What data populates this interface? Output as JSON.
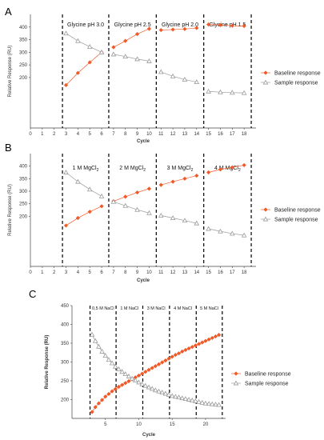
{
  "colors": {
    "baseline": "#f05a28",
    "sample": "#9a9a9a",
    "axis": "#444444",
    "divider": "#000000"
  },
  "chart_data": [
    {
      "panel": "A",
      "type": "line",
      "xlabel": "Cycle",
      "ylabel": "Relative Response (RU)",
      "xlim": [
        0,
        19
      ],
      "ylim": [
        0,
        450
      ],
      "xticks": [
        0,
        1,
        2,
        3,
        4,
        5,
        6,
        7,
        8,
        9,
        10,
        11,
        12,
        13,
        14,
        15,
        16,
        17,
        18
      ],
      "yticks": [
        200,
        250,
        300,
        350,
        400
      ],
      "dividers": [
        2.7,
        6.6,
        10.6,
        14.6,
        18.6
      ],
      "segments": [
        {
          "label": "Glycine pH 3.0",
          "sub": ""
        },
        {
          "label": "Glycine pH 2.5",
          "sub": ""
        },
        {
          "label": "Glycine pH 2.0",
          "sub": ""
        },
        {
          "label": "Glycine pH 1.5",
          "sub": ""
        }
      ],
      "series": [
        {
          "name": "Baseline response",
          "marker": "diamond",
          "groups": [
            {
              "x": [
                3,
                4,
                5,
                6
              ],
              "y": [
                170,
                218,
                260,
                300
              ]
            },
            {
              "x": [
                7,
                8,
                9,
                10
              ],
              "y": [
                320,
                345,
                372,
                393
              ]
            },
            {
              "x": [
                11,
                12,
                13,
                14
              ],
              "y": [
                388,
                390,
                392,
                396
              ]
            },
            {
              "x": [
                15,
                16,
                17,
                18
              ],
              "y": [
                410,
                408,
                405,
                404
              ]
            }
          ]
        },
        {
          "name": "Sample response",
          "marker": "triangle",
          "groups": [
            {
              "x": [
                3,
                4,
                5,
                6
              ],
              "y": [
                375,
                345,
                322,
                300
              ]
            },
            {
              "x": [
                7,
                8,
                9,
                10
              ],
              "y": [
                292,
                283,
                273,
                265
              ]
            },
            {
              "x": [
                11,
                12,
                13,
                14
              ],
              "y": [
                222,
                205,
                192,
                182
              ]
            },
            {
              "x": [
                15,
                16,
                17,
                18
              ],
              "y": [
                145,
                142,
                140,
                139
              ]
            }
          ]
        }
      ]
    },
    {
      "panel": "B",
      "type": "line",
      "xlabel": "Cycle",
      "ylabel": "Relative Response (RU)",
      "xlim": [
        0,
        19
      ],
      "ylim": [
        0,
        450
      ],
      "xticks": [
        0,
        1,
        2,
        3,
        4,
        5,
        6,
        7,
        8,
        9,
        10,
        11,
        12,
        13,
        14,
        15,
        16,
        17,
        18
      ],
      "yticks": [
        200,
        250,
        300,
        350,
        400
      ],
      "dividers": [
        2.7,
        6.6,
        10.6,
        14.6,
        18.6
      ],
      "segments": [
        {
          "label": "1 M MgCl",
          "sub": "2"
        },
        {
          "label": "2 M MgCl",
          "sub": "2"
        },
        {
          "label": "3 M MgCl",
          "sub": "2"
        },
        {
          "label": "4 M MgCl",
          "sub": "2"
        }
      ],
      "series": [
        {
          "name": "Baseline response",
          "marker": "diamond",
          "groups": [
            {
              "x": [
                3,
                4,
                5,
                6
              ],
              "y": [
                163,
                193,
                218,
                240
              ]
            },
            {
              "x": [
                7,
                8,
                9,
                10
              ],
              "y": [
                260,
                278,
                295,
                310
              ]
            },
            {
              "x": [
                11,
                12,
                13,
                14
              ],
              "y": [
                325,
                338,
                350,
                362
              ]
            },
            {
              "x": [
                15,
                16,
                17,
                18
              ],
              "y": [
                375,
                387,
                395,
                404
              ]
            }
          ]
        },
        {
          "name": "Sample response",
          "marker": "triangle",
          "groups": [
            {
              "x": [
                3,
                4,
                5,
                6
              ],
              "y": [
                375,
                338,
                307,
                280
              ]
            },
            {
              "x": [
                7,
                8,
                9,
                10
              ],
              "y": [
                258,
                242,
                226,
                213
              ]
            },
            {
              "x": [
                11,
                12,
                13,
                14
              ],
              "y": [
                203,
                193,
                183,
                172
              ]
            },
            {
              "x": [
                15,
                16,
                17,
                18
              ],
              "y": [
                150,
                140,
                131,
                124
              ]
            }
          ]
        }
      ]
    },
    {
      "panel": "C",
      "type": "line",
      "xlabel": "Cycle",
      "ylabel": "Relative Response (RU)",
      "xlim": [
        0,
        23
      ],
      "ylim": [
        150,
        450
      ],
      "xticks": [
        5,
        10,
        15,
        20
      ],
      "yticks": [
        200,
        250,
        300,
        350,
        400,
        450
      ],
      "dividers": [
        2.7,
        6.6,
        10.6,
        14.6,
        18.6,
        22.5
      ],
      "segments": [
        {
          "label": "0,5 M NaCl",
          "sub": ""
        },
        {
          "label": "1 M NaCl",
          "sub": ""
        },
        {
          "label": "3 M NaCl",
          "sub": ""
        },
        {
          "label": "4 M NaCl",
          "sub": ""
        },
        {
          "label": "5 M NaCl",
          "sub": ""
        }
      ],
      "series": [
        {
          "name": "Baseline response",
          "marker": "diamond",
          "groups": [
            {
              "x": [
                3,
                3.5,
                4,
                4.5,
                5,
                5.5,
                6,
                6.5,
                7,
                7.5,
                8,
                8.5,
                9,
                9.5,
                10,
                10.5,
                11,
                11.5,
                12,
                12.5,
                13,
                13.5,
                14,
                14.5,
                15,
                15.5,
                16,
                16.5,
                17,
                17.5,
                18,
                18.5,
                19,
                19.5,
                20,
                20.5,
                21,
                21.5,
                22
              ],
              "y": [
                167,
                180,
                190,
                199,
                208,
                215,
                222,
                228,
                234,
                239,
                244,
                249,
                254,
                259,
                264,
                269,
                274,
                279,
                284,
                289,
                294,
                299,
                304,
                309,
                314,
                319,
                323,
                328,
                332,
                336,
                340,
                344,
                348,
                352,
                356,
                360,
                364,
                368,
                372
              ]
            }
          ]
        },
        {
          "name": "Sample response",
          "marker": "triangle",
          "groups": [
            {
              "x": [
                3,
                3.5,
                4,
                4.5,
                5,
                5.5,
                6,
                6.5,
                7,
                7.5,
                8,
                8.5,
                9,
                9.5,
                10,
                10.5,
                11,
                11.5,
                12,
                12.5,
                13,
                13.5,
                14,
                14.5,
                15,
                15.5,
                16,
                16.5,
                17,
                17.5,
                18,
                18.5,
                19,
                19.5,
                20,
                20.5,
                21,
                21.5,
                22
              ],
              "y": [
                373,
                356,
                341,
                328,
                317,
                306,
                297,
                288,
                281,
                274,
                268,
                262,
                256,
                251,
                246,
                241,
                237,
                233,
                229,
                225,
                222,
                219,
                216,
                213,
                210,
                208,
                206,
                204,
                202,
                200,
                198,
                196,
                194,
                192,
                190,
                189,
                188,
                187,
                186
              ]
            }
          ]
        }
      ]
    }
  ]
}
